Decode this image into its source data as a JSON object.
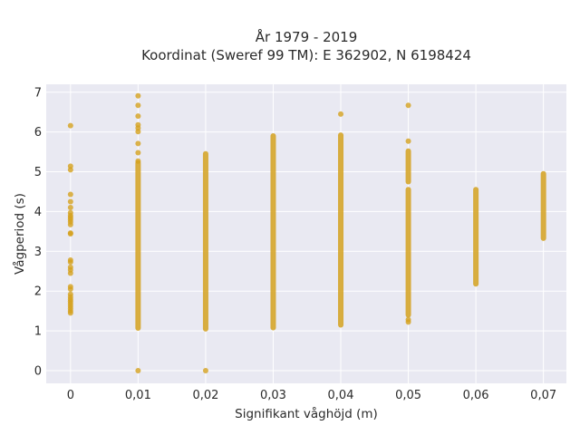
{
  "chart_data": {
    "type": "scatter",
    "title": "År 1979 - 2019",
    "subtitle": "Koordinat (Sweref 99 TM): E 362902, N 6198424",
    "xlabel": "Signifikant våghöjd (m)",
    "ylabel": "Vågperiod (s)",
    "xlim": [
      -0.0036,
      0.0734
    ],
    "ylim": [
      -0.32,
      7.2
    ],
    "x_ticks": [
      0,
      0.01,
      0.02,
      0.03,
      0.04,
      0.05,
      0.06,
      0.07
    ],
    "x_tick_labels": [
      "0",
      "0,01",
      "0,02",
      "0,03",
      "0,04",
      "0,05",
      "0,06",
      "0,07"
    ],
    "y_ticks": [
      0,
      1,
      2,
      3,
      4,
      5,
      6,
      7
    ],
    "y_tick_labels": [
      "0",
      "1",
      "2",
      "3",
      "4",
      "5",
      "6",
      "7"
    ],
    "grid": true,
    "marker_color": "#d4a11e",
    "plot_background": "#e9e9f2",
    "points": [
      {
        "x": 0,
        "y": 6.16
      },
      {
        "x": 0,
        "y": 5.14
      },
      {
        "x": 0,
        "y": 5.05
      },
      {
        "x": 0,
        "y": 4.43
      },
      {
        "x": 0,
        "y": 4.25
      },
      {
        "x": 0,
        "y": 4.1
      },
      {
        "x": 0,
        "y": 3.97
      },
      {
        "x": 0,
        "y": 3.9
      },
      {
        "x": 0,
        "y": 3.85
      },
      {
        "x": 0,
        "y": 3.8
      },
      {
        "x": 0,
        "y": 3.74
      },
      {
        "x": 0,
        "y": 3.67
      },
      {
        "x": 0,
        "y": 3.46
      },
      {
        "x": 0,
        "y": 3.44
      },
      {
        "x": 0,
        "y": 2.78
      },
      {
        "x": 0,
        "y": 2.73
      },
      {
        "x": 0,
        "y": 2.6
      },
      {
        "x": 0,
        "y": 2.53
      },
      {
        "x": 0,
        "y": 2.45
      },
      {
        "x": 0,
        "y": 2.11
      },
      {
        "x": 0,
        "y": 2.05
      },
      {
        "x": 0,
        "y": 1.92
      },
      {
        "x": 0,
        "y": 1.85
      },
      {
        "x": 0,
        "y": 1.79
      },
      {
        "x": 0,
        "y": 1.74
      },
      {
        "x": 0,
        "y": 1.68
      },
      {
        "x": 0,
        "y": 1.62
      },
      {
        "x": 0,
        "y": 1.56
      },
      {
        "x": 0,
        "y": 1.5
      },
      {
        "x": 0,
        "y": 1.45
      },
      {
        "x": 0.01,
        "y": 6.91
      },
      {
        "x": 0.01,
        "y": 6.67
      },
      {
        "x": 0.01,
        "y": 6.4
      },
      {
        "x": 0.01,
        "y": 6.18
      },
      {
        "x": 0.01,
        "y": 6.1
      },
      {
        "x": 0.01,
        "y": 6.01
      },
      {
        "x": 0.01,
        "y": 5.71
      },
      {
        "x": 0.01,
        "y": 5.48
      },
      {
        "x": 0.01,
        "y": 5.27
      },
      {
        "x": 0.01,
        "y": 0.0
      },
      {
        "x": 0.02,
        "y": 0.0
      },
      {
        "x": 0.04,
        "y": 6.45
      },
      {
        "x": 0.05,
        "y": 6.67
      },
      {
        "x": 0.05,
        "y": 5.77
      },
      {
        "x": 0.05,
        "y": 1.28
      },
      {
        "x": 0.05,
        "y": 1.22
      }
    ],
    "point_ranges": [
      {
        "x": 0.01,
        "y_min": 1.07,
        "y_max": 5.22
      },
      {
        "x": 0.02,
        "y_min": 1.05,
        "y_max": 5.45
      },
      {
        "x": 0.03,
        "y_min": 1.08,
        "y_max": 5.9
      },
      {
        "x": 0.04,
        "y_min": 1.15,
        "y_max": 5.92
      },
      {
        "x": 0.05,
        "y_min": 1.4,
        "y_max": 4.55
      },
      {
        "x": 0.05,
        "y_min": 4.75,
        "y_max": 5.52
      },
      {
        "x": 0.06,
        "y_min": 2.18,
        "y_max": 4.55
      },
      {
        "x": 0.07,
        "y_min": 3.33,
        "y_max": 4.95
      }
    ]
  }
}
